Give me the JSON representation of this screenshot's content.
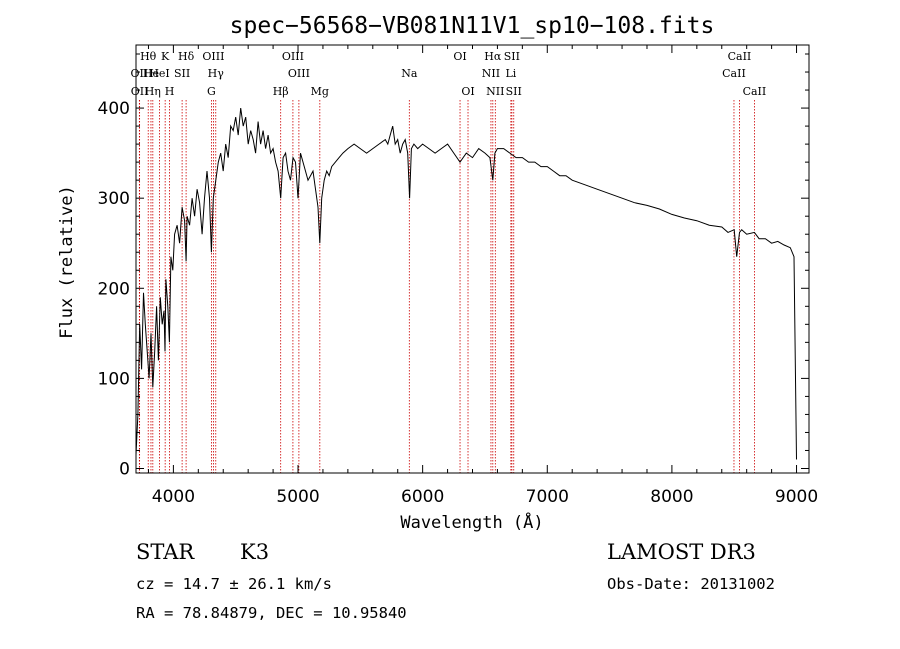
{
  "chart_data": {
    "type": "line",
    "title": "spec−56568−VB081N11V1_sp10−108.fits",
    "xlabel": "Wavelength (Å)",
    "ylabel": "Flux (relative)",
    "xlim": [
      3700,
      9100
    ],
    "ylim": [
      -5,
      470
    ],
    "xticks": [
      4000,
      5000,
      6000,
      7000,
      8000,
      9000
    ],
    "yticks": [
      0,
      100,
      200,
      300,
      400
    ],
    "xtick_labels": [
      "4000",
      "5000",
      "6000",
      "7000",
      "8000",
      "9000"
    ],
    "ytick_labels": [
      "0",
      "100",
      "200",
      "300",
      "400"
    ],
    "series": [
      {
        "name": "flux",
        "x": [
          3700,
          3715,
          3730,
          3745,
          3760,
          3775,
          3790,
          3805,
          3820,
          3835,
          3850,
          3865,
          3880,
          3895,
          3910,
          3925,
          3933,
          3940,
          3955,
          3968,
          3980,
          3995,
          4010,
          4030,
          4050,
          4070,
          4090,
          4102,
          4110,
          4130,
          4150,
          4170,
          4190,
          4210,
          4230,
          4250,
          4270,
          4290,
          4305,
          4320,
          4340,
          4360,
          4380,
          4400,
          4420,
          4440,
          4460,
          4480,
          4500,
          4520,
          4540,
          4560,
          4580,
          4600,
          4620,
          4640,
          4660,
          4680,
          4700,
          4720,
          4740,
          4760,
          4780,
          4800,
          4820,
          4840,
          4861,
          4880,
          4900,
          4920,
          4940,
          4960,
          4980,
          5000,
          5020,
          5040,
          5060,
          5080,
          5100,
          5120,
          5140,
          5160,
          5175,
          5190,
          5210,
          5230,
          5250,
          5270,
          5300,
          5330,
          5360,
          5400,
          5450,
          5500,
          5550,
          5600,
          5650,
          5700,
          5720,
          5740,
          5760,
          5780,
          5800,
          5820,
          5840,
          5860,
          5880,
          5895,
          5910,
          5930,
          5960,
          6000,
          6050,
          6100,
          6150,
          6200,
          6250,
          6300,
          6350,
          6400,
          6450,
          6500,
          6540,
          6563,
          6580,
          6600,
          6650,
          6700,
          6750,
          6800,
          6850,
          6900,
          6950,
          7000,
          7050,
          7100,
          7150,
          7200,
          7300,
          7400,
          7500,
          7600,
          7700,
          7800,
          7900,
          8000,
          8100,
          8200,
          8300,
          8400,
          8450,
          8500,
          8520,
          8542,
          8560,
          8600,
          8662,
          8700,
          8750,
          8800,
          8850,
          8900,
          8950,
          8980,
          9000
        ],
        "values": [
          15,
          60,
          160,
          110,
          195,
          160,
          130,
          100,
          150,
          90,
          130,
          180,
          120,
          190,
          160,
          175,
          130,
          210,
          180,
          140,
          235,
          220,
          260,
          270,
          250,
          290,
          275,
          230,
          280,
          270,
          300,
          280,
          310,
          295,
          260,
          300,
          330,
          300,
          240,
          300,
          320,
          340,
          350,
          330,
          360,
          345,
          380,
          375,
          390,
          370,
          400,
          380,
          390,
          360,
          375,
          365,
          350,
          385,
          360,
          375,
          355,
          370,
          350,
          355,
          340,
          330,
          300,
          345,
          350,
          330,
          320,
          345,
          340,
          300,
          350,
          340,
          330,
          320,
          325,
          330,
          310,
          290,
          250,
          300,
          320,
          330,
          325,
          335,
          340,
          345,
          350,
          355,
          360,
          355,
          350,
          355,
          360,
          365,
          360,
          370,
          380,
          360,
          365,
          350,
          360,
          365,
          350,
          300,
          355,
          360,
          355,
          360,
          355,
          350,
          355,
          360,
          350,
          340,
          350,
          345,
          355,
          350,
          345,
          320,
          350,
          355,
          355,
          350,
          345,
          345,
          340,
          340,
          335,
          335,
          330,
          325,
          325,
          320,
          315,
          310,
          305,
          300,
          295,
          292,
          288,
          282,
          278,
          275,
          270,
          268,
          262,
          265,
          235,
          262,
          265,
          260,
          262,
          255,
          255,
          250,
          252,
          248,
          245,
          235,
          10
        ],
        "color": "#000000"
      }
    ],
    "lines": [
      {
        "label": "Hθ",
        "x": 3798,
        "tier": 0
      },
      {
        "label": "He",
        "x": 3820,
        "tier": 1
      },
      {
        "label": "K",
        "x": 3934,
        "tier": 0
      },
      {
        "label": "Hδ",
        "x": 4102,
        "tier": 0
      },
      {
        "label": "OII",
        "x": 3727,
        "tier": 1
      },
      {
        "label": "OII",
        "x": 3729,
        "tier": 2
      },
      {
        "label": "HeI",
        "x": 3889,
        "tier": 1
      },
      {
        "label": "Hη",
        "x": 3835,
        "tier": 2
      },
      {
        "label": "H",
        "x": 3969,
        "tier": 2
      },
      {
        "label": "SII",
        "x": 4070,
        "tier": 1
      },
      {
        "label": "OIII",
        "x": 4321,
        "tier": 0
      },
      {
        "label": "Hγ",
        "x": 4340,
        "tier": 1
      },
      {
        "label": "G",
        "x": 4305,
        "tier": 2
      },
      {
        "label": "OIII",
        "x": 4959,
        "tier": 0
      },
      {
        "label": "OIII",
        "x": 5007,
        "tier": 1
      },
      {
        "label": "Hβ",
        "x": 4861,
        "tier": 2
      },
      {
        "label": "Mg",
        "x": 5175,
        "tier": 2
      },
      {
        "label": "Na",
        "x": 5893,
        "tier": 1
      },
      {
        "label": "OI",
        "x": 6300,
        "tier": 0
      },
      {
        "label": "OI",
        "x": 6364,
        "tier": 2
      },
      {
        "label": "Hα",
        "x": 6563,
        "tier": 0
      },
      {
        "label": "SII",
        "x": 6716,
        "tier": 0
      },
      {
        "label": "NII",
        "x": 6548,
        "tier": 1
      },
      {
        "label": "Li",
        "x": 6708,
        "tier": 1
      },
      {
        "label": "NII",
        "x": 6583,
        "tier": 2
      },
      {
        "label": "SII",
        "x": 6731,
        "tier": 2
      },
      {
        "label": "CaII",
        "x": 8542,
        "tier": 0
      },
      {
        "label": "CaII",
        "x": 8498,
        "tier": 1
      },
      {
        "label": "CaII",
        "x": 8662,
        "tier": 2
      }
    ],
    "annotations_color": "#cc0000"
  },
  "info": {
    "class": "STAR",
    "subclass": "K3",
    "survey": "LAMOST DR3",
    "cz": "cz = 14.7 ± 26.1 km/s",
    "obs_date": "Obs-Date: 20131002",
    "radec": "RA =  78.84879, DEC =  10.95840"
  }
}
